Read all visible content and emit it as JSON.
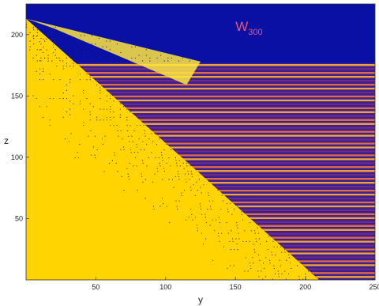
{
  "chart_data": {
    "type": "heatmap",
    "title": "",
    "xlabel": "y",
    "ylabel": "z",
    "xlim": [
      0,
      250
    ],
    "ylim": [
      0,
      225
    ],
    "xticks": [
      50,
      100,
      150,
      200,
      250
    ],
    "yticks": [
      50,
      100,
      150,
      200
    ],
    "grid": false,
    "annotation": {
      "main": "W",
      "sub": "300",
      "x": 150,
      "y": 203
    },
    "regions": {
      "top_plateau": {
        "color": "#0a10a3",
        "z_from": 177,
        "z_to": 225
      },
      "diagonal_boundary": [
        [
          0,
          213
        ],
        [
          210,
          0
        ]
      ],
      "upper_boundary": [
        [
          0,
          213
        ],
        [
          125,
          178
        ]
      ],
      "right_band": {
        "stripe_colors": [
          "#3d1f8f",
          "#f0a238",
          "#e06a44",
          "#6d2a86"
        ]
      },
      "left_region": {
        "colors": [
          "#ffe640",
          "#ffd400",
          "#f4b800"
        ]
      }
    },
    "colors": {
      "background_top": "#0a10a3",
      "stripe_dark": "#3d1f8f",
      "stripe_orange": "#f0a238",
      "wedge_yellow": "#ffe640",
      "annotation": "#e8576e"
    }
  }
}
